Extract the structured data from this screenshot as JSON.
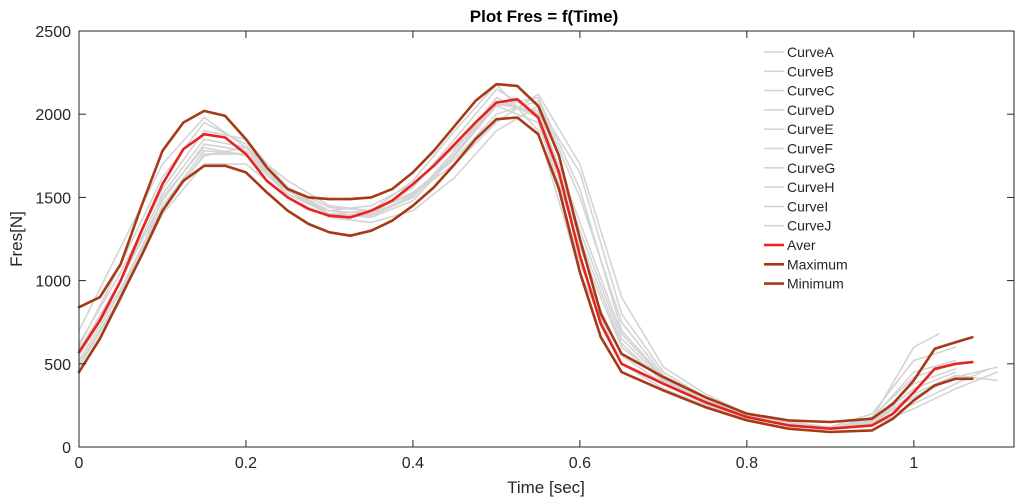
{
  "chart_data": {
    "type": "line",
    "title": "Plot Fres = f(Time)",
    "xlabel": "Time [sec]",
    "ylabel": "Fres[N]",
    "xlim": [
      0,
      1.12
    ],
    "ylim": [
      0,
      2500
    ],
    "xticks": [
      0,
      0.2,
      0.4,
      0.6,
      0.8,
      1
    ],
    "xtick_labels": [
      "0",
      "0.2",
      "0.4",
      "0.6",
      "0.8",
      "1"
    ],
    "yticks": [
      0,
      500,
      1000,
      1500,
      2000,
      2500
    ],
    "ytick_labels": [
      "0",
      "500",
      "1000",
      "1500",
      "2000",
      "2500"
    ],
    "grid": false,
    "box": true,
    "legend_position": "top-right",
    "series": [
      {
        "name": "CurveA",
        "color": "#d4d4d4",
        "width": 1.6,
        "x": [
          0,
          0.05,
          0.1,
          0.15,
          0.2,
          0.25,
          0.3,
          0.35,
          0.4,
          0.45,
          0.5,
          0.55,
          0.6,
          0.65,
          0.7,
          0.75,
          0.8,
          0.85,
          0.9,
          0.95,
          1.0,
          1.03
        ],
        "y": [
          600,
          1100,
          1620,
          1950,
          1820,
          1500,
          1380,
          1400,
          1560,
          1850,
          2150,
          2000,
          1100,
          550,
          380,
          260,
          170,
          130,
          110,
          170,
          600,
          680
        ]
      },
      {
        "name": "CurveB",
        "color": "#d4d4d4",
        "width": 1.6,
        "x": [
          0,
          0.05,
          0.1,
          0.15,
          0.2,
          0.25,
          0.3,
          0.35,
          0.4,
          0.45,
          0.5,
          0.55,
          0.6,
          0.65,
          0.7,
          0.75,
          0.8,
          0.85,
          0.9,
          0.95,
          1.0,
          1.05,
          1.1
        ],
        "y": [
          450,
          880,
          1500,
          1800,
          1750,
          1520,
          1420,
          1450,
          1580,
          1800,
          2050,
          2100,
          1550,
          700,
          420,
          300,
          200,
          140,
          120,
          150,
          320,
          430,
          400
        ]
      },
      {
        "name": "CurveC",
        "color": "#d4d4d4",
        "width": 1.6,
        "x": [
          0,
          0.05,
          0.1,
          0.15,
          0.2,
          0.25,
          0.3,
          0.35,
          0.4,
          0.45,
          0.5,
          0.55,
          0.6,
          0.65,
          0.7,
          0.75,
          0.8,
          0.85,
          0.9,
          0.95,
          1.0,
          1.05,
          1.09
        ],
        "y": [
          550,
          950,
          1450,
          1750,
          1800,
          1600,
          1450,
          1420,
          1520,
          1700,
          1950,
          2120,
          1700,
          900,
          480,
          320,
          200,
          150,
          120,
          140,
          260,
          380,
          470
        ]
      },
      {
        "name": "CurveD",
        "color": "#d4d4d4",
        "width": 1.6,
        "x": [
          0,
          0.05,
          0.1,
          0.15,
          0.2,
          0.25,
          0.3,
          0.35,
          0.4,
          0.45,
          0.5,
          0.55,
          0.6,
          0.65,
          0.7,
          0.75,
          0.8,
          0.85,
          0.9,
          0.95,
          1.0,
          1.05
        ],
        "y": [
          620,
          1050,
          1550,
          1900,
          1850,
          1560,
          1400,
          1380,
          1480,
          1750,
          2050,
          1950,
          1200,
          600,
          400,
          270,
          180,
          130,
          110,
          180,
          420,
          500
        ]
      },
      {
        "name": "CurveE",
        "color": "#d4d4d4",
        "width": 1.6,
        "x": [
          0,
          0.05,
          0.1,
          0.15,
          0.2,
          0.25,
          0.3,
          0.35,
          0.4,
          0.45,
          0.5,
          0.55,
          0.6,
          0.65,
          0.7,
          0.75,
          0.8,
          0.85,
          0.9,
          0.95,
          1.0,
          1.05,
          1.1
        ],
        "y": [
          500,
          900,
          1400,
          1700,
          1700,
          1500,
          1380,
          1350,
          1420,
          1620,
          1900,
          2050,
          1650,
          800,
          450,
          300,
          190,
          140,
          110,
          130,
          230,
          350,
          450
        ]
      },
      {
        "name": "CurveF",
        "color": "#d4d4d4",
        "width": 1.6,
        "x": [
          0,
          0.05,
          0.1,
          0.15,
          0.2,
          0.25,
          0.3,
          0.35,
          0.4,
          0.45,
          0.5,
          0.55,
          0.6,
          0.65,
          0.7,
          0.75,
          0.8,
          0.85,
          0.9,
          0.95,
          1.0,
          1.05
        ],
        "y": [
          700,
          1200,
          1700,
          1980,
          1800,
          1520,
          1400,
          1420,
          1600,
          1900,
          2180,
          1900,
          1050,
          500,
          350,
          250,
          170,
          130,
          120,
          200,
          520,
          600
        ]
      },
      {
        "name": "CurveG",
        "color": "#d4d4d4",
        "width": 1.6,
        "x": [
          0,
          0.05,
          0.1,
          0.15,
          0.2,
          0.25,
          0.3,
          0.35,
          0.4,
          0.45,
          0.5,
          0.55,
          0.6,
          0.65,
          0.7,
          0.75,
          0.8,
          0.85,
          0.9,
          0.95,
          1.0,
          1.05
        ],
        "y": [
          580,
          1000,
          1480,
          1820,
          1780,
          1550,
          1420,
          1400,
          1500,
          1760,
          2080,
          2000,
          1300,
          650,
          400,
          280,
          180,
          135,
          115,
          160,
          380,
          470
        ]
      },
      {
        "name": "CurveH",
        "color": "#d4d4d4",
        "width": 1.6,
        "x": [
          0,
          0.05,
          0.1,
          0.15,
          0.2,
          0.25,
          0.3,
          0.35,
          0.4,
          0.45,
          0.5,
          0.55,
          0.6,
          0.65,
          0.7,
          0.75,
          0.8,
          0.85,
          0.9,
          0.95,
          1.0,
          1.05,
          1.1
        ],
        "y": [
          520,
          930,
          1420,
          1760,
          1760,
          1560,
          1440,
          1420,
          1530,
          1730,
          2000,
          2080,
          1500,
          750,
          430,
          300,
          190,
          140,
          115,
          145,
          300,
          420,
          480
        ]
      },
      {
        "name": "CurveI",
        "color": "#d4d4d4",
        "width": 1.6,
        "x": [
          0,
          0.05,
          0.1,
          0.15,
          0.2,
          0.25,
          0.3,
          0.35,
          0.4,
          0.45,
          0.5,
          0.55,
          0.6,
          0.65,
          0.7,
          0.75,
          0.8,
          0.85,
          0.9,
          0.95,
          1.0,
          1.05
        ],
        "y": [
          560,
          1000,
          1520,
          1850,
          1800,
          1540,
          1400,
          1390,
          1500,
          1780,
          2100,
          1980,
          1250,
          620,
          390,
          270,
          180,
          130,
          110,
          170,
          450,
          520
        ]
      },
      {
        "name": "CurveJ",
        "color": "#d4d4d4",
        "width": 1.6,
        "x": [
          0,
          0.05,
          0.1,
          0.15,
          0.2,
          0.25,
          0.3,
          0.35,
          0.4,
          0.45,
          0.5,
          0.55,
          0.6,
          0.65,
          0.7,
          0.75,
          0.8,
          0.85,
          0.9,
          0.95,
          1.0,
          1.05
        ],
        "y": [
          480,
          900,
          1450,
          1780,
          1760,
          1540,
          1420,
          1400,
          1510,
          1750,
          2060,
          2020,
          1350,
          680,
          410,
          290,
          190,
          140,
          115,
          150,
          350,
          450
        ]
      },
      {
        "name": "Aver",
        "color": "#e8231f",
        "width": 2.6,
        "x": [
          0,
          0.025,
          0.05,
          0.075,
          0.1,
          0.125,
          0.15,
          0.175,
          0.2,
          0.225,
          0.25,
          0.275,
          0.3,
          0.325,
          0.35,
          0.375,
          0.4,
          0.425,
          0.45,
          0.475,
          0.5,
          0.525,
          0.55,
          0.575,
          0.6,
          0.625,
          0.65,
          0.7,
          0.75,
          0.8,
          0.85,
          0.9,
          0.95,
          0.975,
          1.0,
          1.025,
          1.05,
          1.07
        ],
        "y": [
          570,
          760,
          1000,
          1300,
          1580,
          1790,
          1880,
          1860,
          1760,
          1600,
          1500,
          1430,
          1390,
          1380,
          1420,
          1480,
          1580,
          1690,
          1820,
          1950,
          2070,
          2090,
          1980,
          1650,
          1150,
          740,
          500,
          380,
          270,
          180,
          130,
          110,
          130,
          200,
          330,
          470,
          500,
          510
        ]
      },
      {
        "name": "Maximum",
        "color": "#a63a17",
        "width": 2.6,
        "x": [
          0,
          0.025,
          0.05,
          0.075,
          0.1,
          0.125,
          0.15,
          0.175,
          0.2,
          0.225,
          0.25,
          0.275,
          0.3,
          0.325,
          0.35,
          0.375,
          0.4,
          0.425,
          0.45,
          0.475,
          0.5,
          0.525,
          0.55,
          0.575,
          0.6,
          0.625,
          0.65,
          0.7,
          0.75,
          0.8,
          0.85,
          0.9,
          0.95,
          0.975,
          1.0,
          1.025,
          1.05,
          1.07
        ],
        "y": [
          840,
          900,
          1100,
          1450,
          1780,
          1950,
          2020,
          1990,
          1850,
          1680,
          1550,
          1500,
          1490,
          1490,
          1500,
          1550,
          1650,
          1780,
          1930,
          2080,
          2180,
          2170,
          2050,
          1750,
          1250,
          800,
          560,
          420,
          300,
          200,
          160,
          150,
          170,
          260,
          400,
          590,
          630,
          660
        ]
      },
      {
        "name": "Minimum",
        "color": "#a63a17",
        "width": 2.6,
        "x": [
          0,
          0.025,
          0.05,
          0.075,
          0.1,
          0.125,
          0.15,
          0.175,
          0.2,
          0.225,
          0.25,
          0.275,
          0.3,
          0.325,
          0.35,
          0.375,
          0.4,
          0.425,
          0.45,
          0.475,
          0.5,
          0.525,
          0.55,
          0.575,
          0.6,
          0.625,
          0.65,
          0.7,
          0.75,
          0.8,
          0.85,
          0.9,
          0.95,
          0.975,
          1.0,
          1.025,
          1.05,
          1.07
        ],
        "y": [
          450,
          650,
          900,
          1150,
          1420,
          1600,
          1690,
          1690,
          1650,
          1530,
          1420,
          1340,
          1290,
          1270,
          1300,
          1360,
          1450,
          1560,
          1700,
          1850,
          1970,
          1980,
          1880,
          1550,
          1050,
          660,
          450,
          340,
          240,
          160,
          110,
          90,
          100,
          170,
          280,
          370,
          410,
          410
        ]
      }
    ]
  }
}
